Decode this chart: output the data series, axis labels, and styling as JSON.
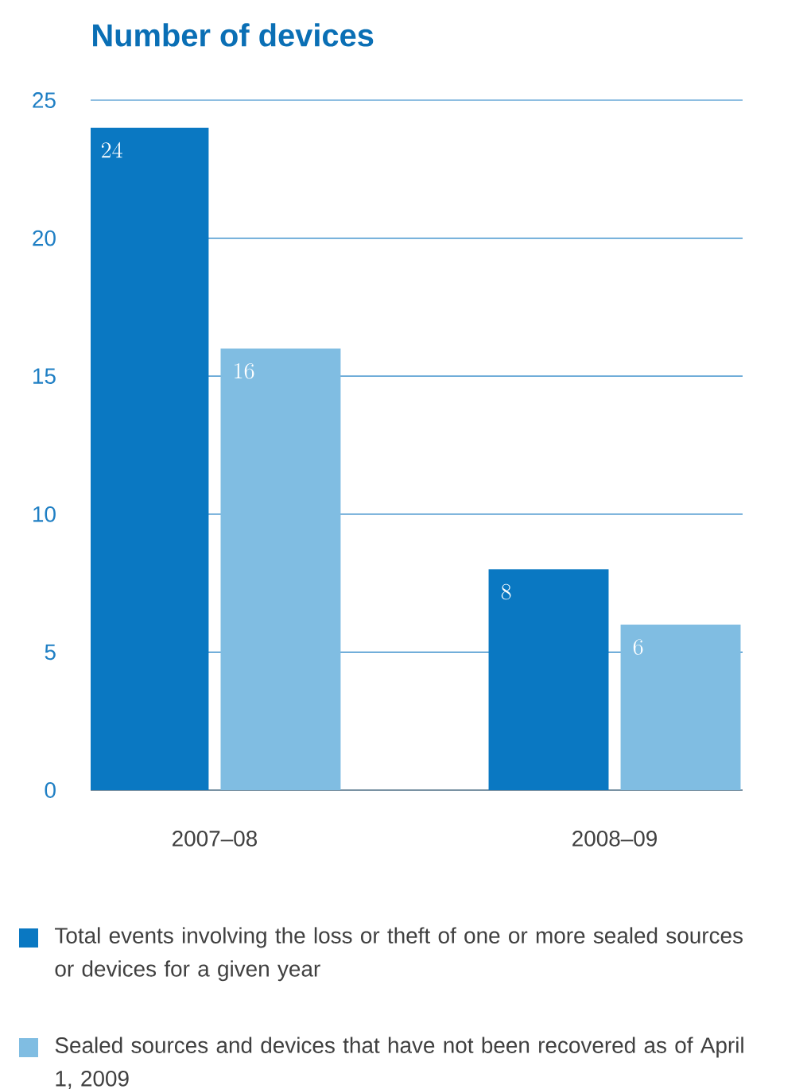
{
  "chart_data": {
    "type": "bar",
    "title": "Number of devices",
    "categories": [
      "2007–08",
      "2008–09"
    ],
    "series": [
      {
        "name": "Total events involving the loss or theft of one or more sealed sources or devices for a given year",
        "color": "#0a78c2",
        "values": [
          24,
          8
        ]
      },
      {
        "name": "Sealed sources and devices that have not been recovered as of April 1, 2009",
        "color": "#80bde2",
        "values": [
          16,
          6
        ]
      }
    ],
    "ylim": [
      0,
      25
    ],
    "yticks": [
      0,
      5,
      10,
      15,
      20,
      25
    ],
    "grid": "y",
    "legend": "bottom",
    "data_labels": true
  }
}
